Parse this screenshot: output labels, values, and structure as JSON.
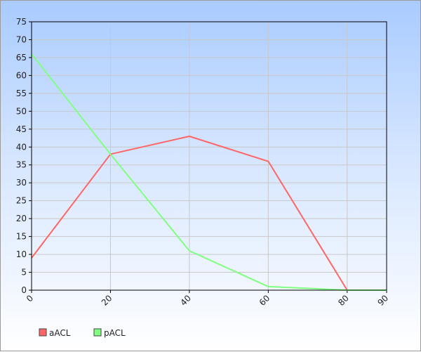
{
  "chart_data": {
    "type": "line",
    "x": [
      0,
      20,
      40,
      60,
      80,
      90
    ],
    "series": [
      {
        "name": "aACL",
        "color": "#ff6666",
        "values": [
          9,
          38,
          43,
          36,
          0,
          0
        ]
      },
      {
        "name": "pACL",
        "color": "#80ff80",
        "values": [
          66,
          38,
          11,
          1,
          0,
          0
        ]
      }
    ],
    "xlim": [
      0,
      90
    ],
    "ylim": [
      0,
      75
    ],
    "xticks": [
      0,
      20,
      40,
      60,
      80,
      90
    ],
    "yticks": [
      0,
      5,
      10,
      15,
      20,
      25,
      30,
      35,
      40,
      45,
      50,
      55,
      60,
      65,
      70,
      75
    ],
    "grid": true,
    "legend_position": "bottom-left",
    "title": "",
    "xlabel": "",
    "ylabel": ""
  }
}
